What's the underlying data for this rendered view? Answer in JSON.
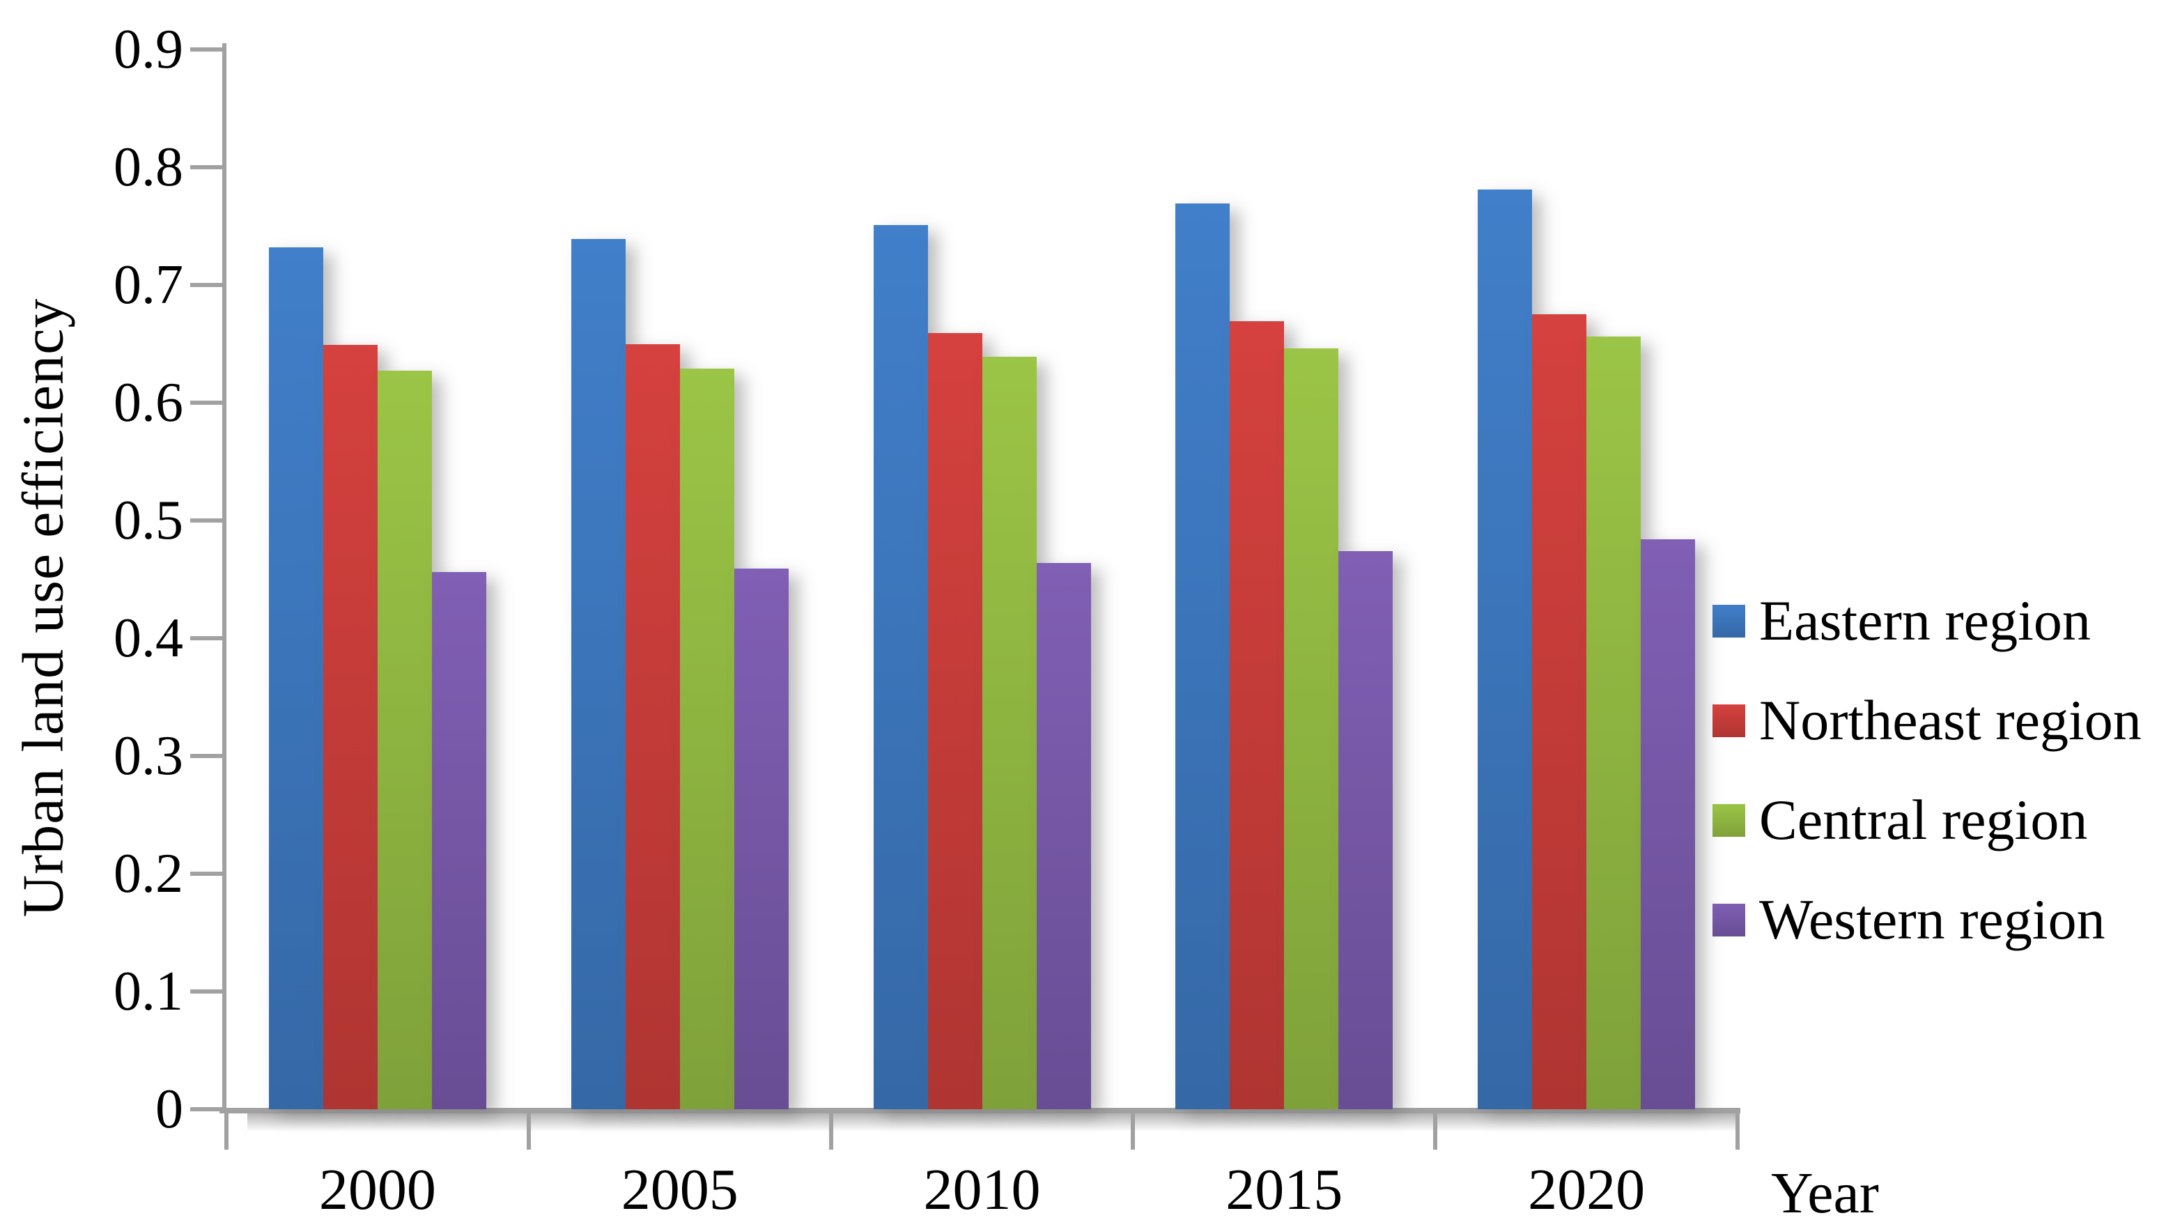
{
  "chart_data": {
    "type": "bar",
    "title": "",
    "xlabel": "Year",
    "ylabel": "Urban land use efficiency",
    "categories": [
      "2000",
      "2005",
      "2010",
      "2015",
      "2020"
    ],
    "series": [
      {
        "name": "Eastern region",
        "color": "#3b73b8",
        "values": [
          0.732,
          0.739,
          0.751,
          0.769,
          0.781
        ]
      },
      {
        "name": "Northeast region",
        "color": "#c23b38",
        "values": [
          0.649,
          0.65,
          0.659,
          0.669,
          0.675
        ]
      },
      {
        "name": "Central region",
        "color": "#8db340",
        "values": [
          0.627,
          0.629,
          0.639,
          0.646,
          0.656
        ]
      },
      {
        "name": "Western region",
        "color": "#7456a4",
        "values": [
          0.456,
          0.459,
          0.464,
          0.474,
          0.484
        ]
      }
    ],
    "ylim": [
      0,
      0.9
    ],
    "ytick_step": 0.1,
    "ytick_labels": [
      "0",
      "0.1",
      "0.2",
      "0.3",
      "0.4",
      "0.5",
      "0.6",
      "0.7",
      "0.8",
      "0.9"
    ],
    "grid": false,
    "legend_position": "right"
  },
  "axis_color": "#a1a1a1"
}
